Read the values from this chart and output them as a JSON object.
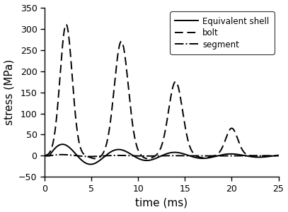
{
  "title": "",
  "xlabel": "time (ms)",
  "ylabel": "stress (MPa)",
  "xlim": [
    0,
    25
  ],
  "ylim": [
    -50,
    350
  ],
  "yticks": [
    -50,
    0,
    50,
    100,
    150,
    200,
    250,
    300,
    350
  ],
  "xticks": [
    0,
    5,
    10,
    15,
    20,
    25
  ],
  "legend": [
    "Equivalent shell",
    "bolt",
    "segment"
  ],
  "figsize": [
    4.07,
    3.0
  ],
  "dpi": 100,
  "shell": {
    "color": "black",
    "linestyle": "-",
    "linewidth": 1.4
  },
  "bolt": {
    "color": "black",
    "linestyle": "--",
    "linewidth": 1.4,
    "dashes": [
      6,
      3
    ]
  },
  "segment": {
    "color": "black",
    "linestyle": "-.",
    "linewidth": 1.4
  }
}
